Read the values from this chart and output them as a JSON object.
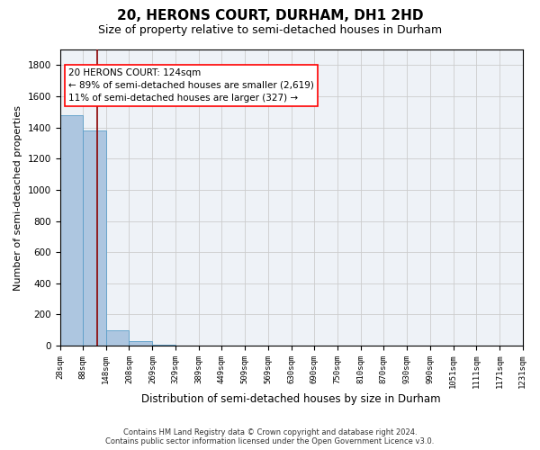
{
  "title": "20, HERONS COURT, DURHAM, DH1 2HD",
  "subtitle": "Size of property relative to semi-detached houses in Durham",
  "xlabel": "Distribution of semi-detached houses by size in Durham",
  "ylabel": "Number of semi-detached properties",
  "footer_line1": "Contains HM Land Registry data © Crown copyright and database right 2024.",
  "footer_line2": "Contains public sector information licensed under the Open Government Licence v3.0.",
  "property_size": 124,
  "annotation_title": "20 HERONS COURT: 124sqm",
  "annotation_line1": "← 89% of semi-detached houses are smaller (2,619)",
  "annotation_line2": "11% of semi-detached houses are larger (327) →",
  "bar_edges": [
    28,
    88,
    148,
    208,
    269,
    329,
    389,
    449,
    509,
    569,
    630,
    690,
    750,
    810,
    870,
    930,
    990,
    1051,
    1111,
    1171,
    1231
  ],
  "bar_heights": [
    1480,
    1380,
    100,
    30,
    5,
    3,
    2,
    1,
    1,
    1,
    1,
    0,
    1,
    0,
    0,
    0,
    0,
    0,
    0,
    0
  ],
  "bar_color": "#adc6e0",
  "bar_edge_color": "#5a9ec8",
  "vline_color": "#8b0000",
  "vline_x": 124,
  "ylim": [
    0,
    1900
  ],
  "yticks": [
    0,
    200,
    400,
    600,
    800,
    1000,
    1200,
    1400,
    1600,
    1800
  ],
  "grid_color": "#cccccc",
  "bg_color": "#eef2f7",
  "title_fontsize": 11,
  "subtitle_fontsize": 9,
  "xlabel_fontsize": 8.5,
  "ylabel_fontsize": 8,
  "annotation_fontsize": 7.5,
  "tick_fontsize": 6.5,
  "ytick_fontsize": 7.5,
  "footer_fontsize": 6
}
